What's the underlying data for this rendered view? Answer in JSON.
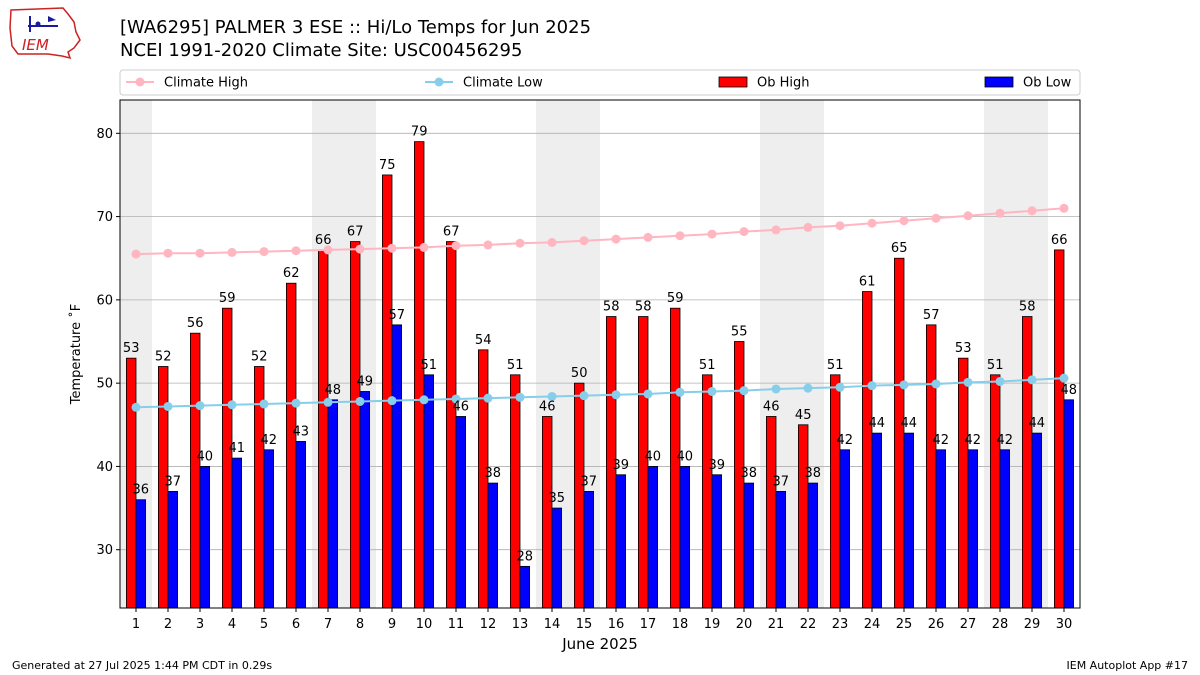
{
  "header": {
    "title_line1": "[WA6295] PALMER 3 ESE :: Hi/Lo Temps for Jun 2025",
    "title_line2": "NCEI 1991-2020 Climate Site: USC00456295"
  },
  "logo": {
    "icon": "iem-logo-icon",
    "text": "IEM",
    "color": "#cc2222"
  },
  "footer": {
    "left": "Generated at 27 Jul 2025 1:44 PM CDT in 0.29s",
    "right": "IEM Autoplot App #17"
  },
  "colors": {
    "climate_high": "#ffb6c1",
    "climate_low": "#87ceeb",
    "ob_high": "#ff0000",
    "ob_low": "#0000ff",
    "weekend_shade": "#eeeeee",
    "grid": "#b0b0b0"
  },
  "chart_data": {
    "type": "bar",
    "xlabel": "June 2025",
    "ylabel": "Temperature ˚F",
    "ylim": [
      23,
      84
    ],
    "yticks": [
      30,
      40,
      50,
      60,
      70,
      80
    ],
    "grid": "horizontal",
    "legend_placement": "top",
    "categories": [
      "1",
      "2",
      "3",
      "4",
      "5",
      "6",
      "7",
      "8",
      "9",
      "10",
      "11",
      "12",
      "13",
      "14",
      "15",
      "16",
      "17",
      "18",
      "19",
      "20",
      "21",
      "22",
      "23",
      "24",
      "25",
      "26",
      "27",
      "28",
      "29",
      "30"
    ],
    "weekend_days": [
      1,
      7,
      8,
      14,
      15,
      21,
      22,
      28,
      29
    ],
    "series": [
      {
        "name": "Ob High",
        "kind": "bar",
        "values": [
          53,
          52,
          56,
          59,
          52,
          62,
          66,
          67,
          75,
          79,
          67,
          54,
          51,
          46,
          50,
          58,
          58,
          59,
          51,
          55,
          46,
          45,
          51,
          61,
          65,
          57,
          53,
          51,
          58,
          66
        ]
      },
      {
        "name": "Ob Low",
        "kind": "bar",
        "values": [
          36,
          37,
          40,
          41,
          42,
          43,
          48,
          49,
          57,
          51,
          46,
          38,
          28,
          35,
          37,
          39,
          40,
          40,
          39,
          38,
          37,
          38,
          42,
          44,
          44,
          42,
          42,
          42,
          44,
          48
        ]
      },
      {
        "name": "Climate High",
        "kind": "line",
        "values": [
          65.5,
          65.6,
          65.6,
          65.7,
          65.8,
          65.9,
          66.0,
          66.1,
          66.2,
          66.3,
          66.5,
          66.6,
          66.8,
          66.9,
          67.1,
          67.3,
          67.5,
          67.7,
          67.9,
          68.2,
          68.4,
          68.7,
          68.9,
          69.2,
          69.5,
          69.8,
          70.1,
          70.4,
          70.7,
          71.0
        ]
      },
      {
        "name": "Climate Low",
        "kind": "line",
        "values": [
          47.1,
          47.2,
          47.3,
          47.4,
          47.5,
          47.6,
          47.7,
          47.8,
          47.9,
          48.0,
          48.1,
          48.2,
          48.3,
          48.4,
          48.5,
          48.6,
          48.7,
          48.9,
          49.0,
          49.1,
          49.3,
          49.4,
          49.5,
          49.7,
          49.8,
          49.9,
          50.1,
          50.2,
          50.4,
          50.6
        ]
      }
    ]
  }
}
